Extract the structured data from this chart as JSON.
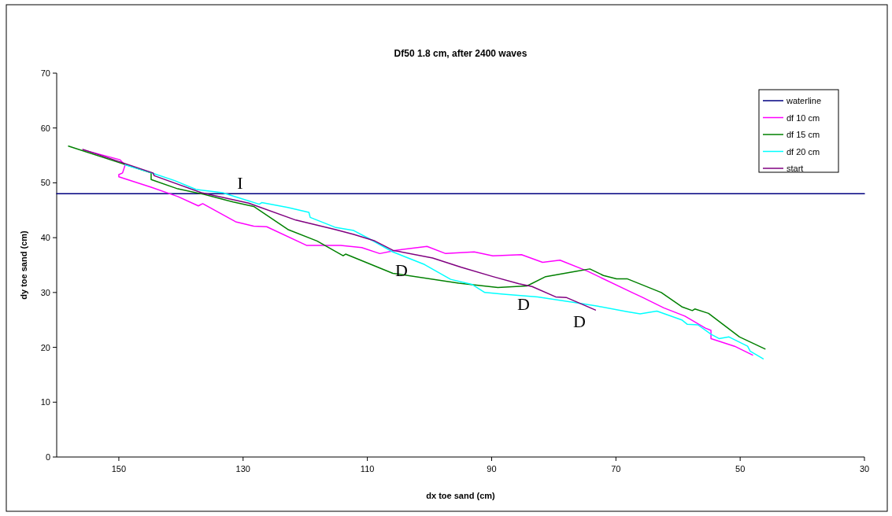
{
  "chart_data": {
    "type": "line",
    "title": "Df50 1.8 cm, after 2400 waves",
    "xlabel": "dx toe sand (cm)",
    "ylabel": "dy toe sand (cm)",
    "xlim": [
      160,
      30
    ],
    "xticks": [
      150,
      130,
      110,
      90,
      70,
      50,
      30
    ],
    "ylim": [
      0,
      70
    ],
    "yticks": [
      0,
      10,
      20,
      30,
      40,
      50,
      60,
      70
    ],
    "grid": false,
    "legend": "top right",
    "line_style": "solid",
    "marker": "none",
    "series": [
      {
        "name": "waterline",
        "color": "#000080",
        "x": [
          160,
          30
        ],
        "values": [
          48,
          48
        ]
      },
      {
        "name": "df 10 cm",
        "color": "#ff00ff",
        "x": [
          155.7,
          149.8,
          149.0,
          149.4,
          150.0,
          150.0,
          144.8,
          140.5,
          137.2,
          136.5,
          131.2,
          128.3,
          126.2,
          119.8,
          114.3,
          110.9,
          108.0,
          105.4,
          100.4,
          97.4,
          92.8,
          89.8,
          85.2,
          81.8,
          79.0,
          74.6,
          67.4,
          65.7,
          62.3,
          58.9,
          55.6,
          54.7,
          54.7,
          50.9,
          48.0
        ],
        "values": [
          56.0,
          54.2,
          53.2,
          51.8,
          51.5,
          51.1,
          49.2,
          47.5,
          45.8,
          46.2,
          42.9,
          42.1,
          42.0,
          38.6,
          38.6,
          38.2,
          37.1,
          37.7,
          38.4,
          37.1,
          37.4,
          36.7,
          36.9,
          35.5,
          35.9,
          33.9,
          30.0,
          29.1,
          27.2,
          25.7,
          23.5,
          23.1,
          21.6,
          20.2,
          18.6
        ]
      },
      {
        "name": "df 15 cm",
        "color": "#008000",
        "x": [
          158.1,
          144.8,
          144.8,
          140.5,
          136.3,
          131.6,
          128.3,
          122.8,
          118.1,
          113.9,
          113.5,
          105.9,
          95.3,
          89.0,
          84.3,
          81.3,
          76.3,
          74.2,
          72.0,
          69.9,
          68.2,
          62.7,
          59.4,
          57.7,
          57.3,
          55.1,
          50.1,
          46.0
        ],
        "values": [
          56.7,
          51.8,
          50.6,
          48.9,
          47.9,
          46.5,
          45.7,
          41.5,
          39.4,
          36.7,
          37.0,
          33.5,
          31.7,
          30.9,
          31.2,
          32.9,
          33.9,
          34.3,
          33.1,
          32.5,
          32.5,
          30.0,
          27.4,
          26.7,
          27.0,
          26.2,
          21.9,
          19.7
        ]
      },
      {
        "name": "df 20 cm",
        "color": "#00ffff",
        "x": [
          149.0,
          145.2,
          141.0,
          137.6,
          133.3,
          131.6,
          127.4,
          127.0,
          122.8,
          119.4,
          119.2,
          115.2,
          112.2,
          109.7,
          105.9,
          100.8,
          96.6,
          93.2,
          91.1,
          88.1,
          82.6,
          76.3,
          72.9,
          68.2,
          66.1,
          63.4,
          59.4,
          58.5,
          56.8,
          54.7,
          53.4,
          51.8,
          48.8,
          48.4,
          46.3
        ],
        "values": [
          53.3,
          52.0,
          50.4,
          48.8,
          48.2,
          47.6,
          46.1,
          46.4,
          45.5,
          44.6,
          43.7,
          41.9,
          41.3,
          39.8,
          37.4,
          35.1,
          32.4,
          31.5,
          30.0,
          29.7,
          29.2,
          28.1,
          27.5,
          26.5,
          26.1,
          26.6,
          25.0,
          24.2,
          24.1,
          22.4,
          21.6,
          21.9,
          20.2,
          19.3,
          17.9
        ]
      },
      {
        "name": "start",
        "color": "#800080",
        "x": [
          155.8,
          144.5,
          144.3,
          136.7,
          129.1,
          121.5,
          115.2,
          112.2,
          108.8,
          105.9,
          99.5,
          94.9,
          89.8,
          85.6,
          83.5,
          79.7,
          78.0,
          73.3
        ],
        "values": [
          56.1,
          51.8,
          51.3,
          48.2,
          46.3,
          43.2,
          41.5,
          40.6,
          39.4,
          37.7,
          36.3,
          34.6,
          32.9,
          31.6,
          31.1,
          29.2,
          29.1,
          26.8
        ]
      }
    ],
    "annotations": [
      "I",
      "D",
      "D",
      "D"
    ]
  }
}
